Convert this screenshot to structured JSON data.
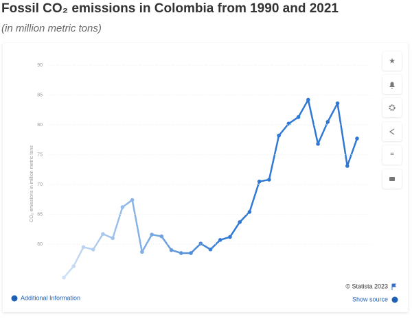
{
  "chart_data": {
    "type": "line",
    "title": "Fossil CO₂ emissions in Colombia from 1990 and 2021",
    "subtitle": "(in million metric tons)",
    "y_label": "CO₂ emissions in million metric tons",
    "credit": "© Statista 2023",
    "additional_info": "Additional Information",
    "show_source": "Show source",
    "categories": [
      null,
      null,
      null,
      null,
      null,
      null,
      null,
      null,
      null,
      null,
      null,
      null,
      null,
      null,
      null,
      null,
      null,
      null,
      null,
      null,
      null,
      null,
      null,
      null,
      null,
      null,
      null,
      null,
      null,
      null,
      null
    ],
    "series": [
      {
        "name": null,
        "color": [
          "#cfe1f6",
          "#2f78d3"
        ],
        "values": [
          54.4,
          56.3,
          59.5,
          59.1,
          61.7,
          61.0,
          66.2,
          67.4,
          58.7,
          61.6,
          61.3,
          59.0,
          58.5,
          58.5,
          60.1,
          59.1,
          60.7,
          61.2,
          63.7,
          65.4,
          70.5,
          70.8,
          78.2,
          80.2,
          81.3,
          84.2,
          76.8,
          80.5,
          83.6,
          73.1,
          77.7
        ]
      }
    ],
    "ylim": [
      53,
      90
    ],
    "yticks": [
      60,
      65,
      70,
      75,
      80,
      85,
      90
    ],
    "grid": true
  }
}
